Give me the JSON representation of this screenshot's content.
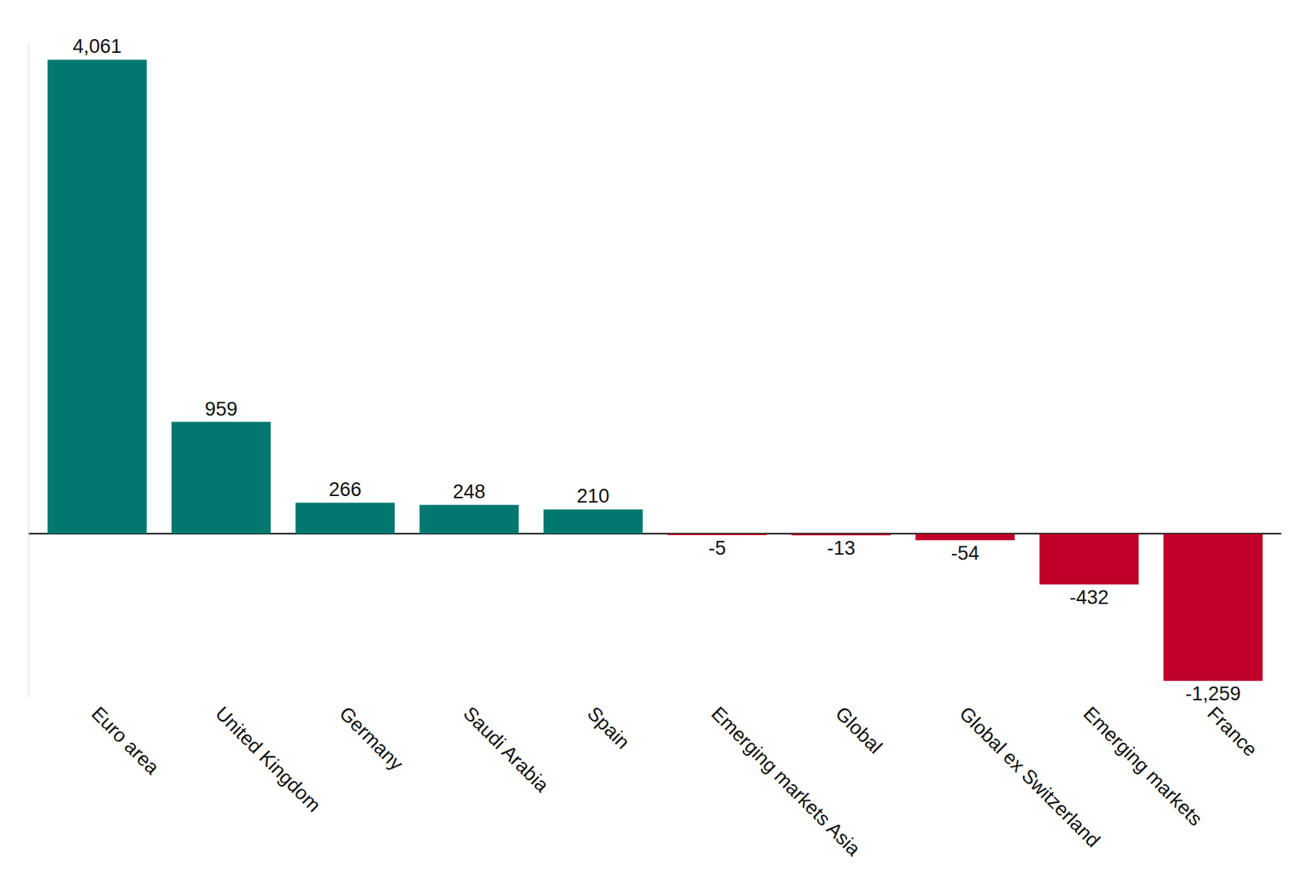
{
  "chart_data": {
    "type": "bar",
    "categories": [
      "Euro area",
      "United Kingdom",
      "Germany",
      "Saudi Arabia",
      "Spain",
      "Emerging markets Asia",
      "Global",
      "Global ex Switzerland",
      "Emerging markets",
      "France"
    ],
    "values": [
      4061,
      959,
      266,
      248,
      210,
      -5,
      -13,
      -54,
      -432,
      -1259
    ],
    "value_labels": [
      "4,061",
      "959",
      "266",
      "248",
      "210",
      "-5",
      "-13",
      "-54",
      "-432",
      "-1,259"
    ],
    "colors": [
      "#00786f",
      "#00786f",
      "#00786f",
      "#00786f",
      "#00786f",
      "#c0002a",
      "#c0002a",
      "#c0002a",
      "#c0002a",
      "#c0002a"
    ],
    "ylim": [
      -1400,
      4200
    ],
    "yticks": [
      0
    ],
    "grid": false,
    "data_labels": true,
    "tick_labels": "x"
  }
}
